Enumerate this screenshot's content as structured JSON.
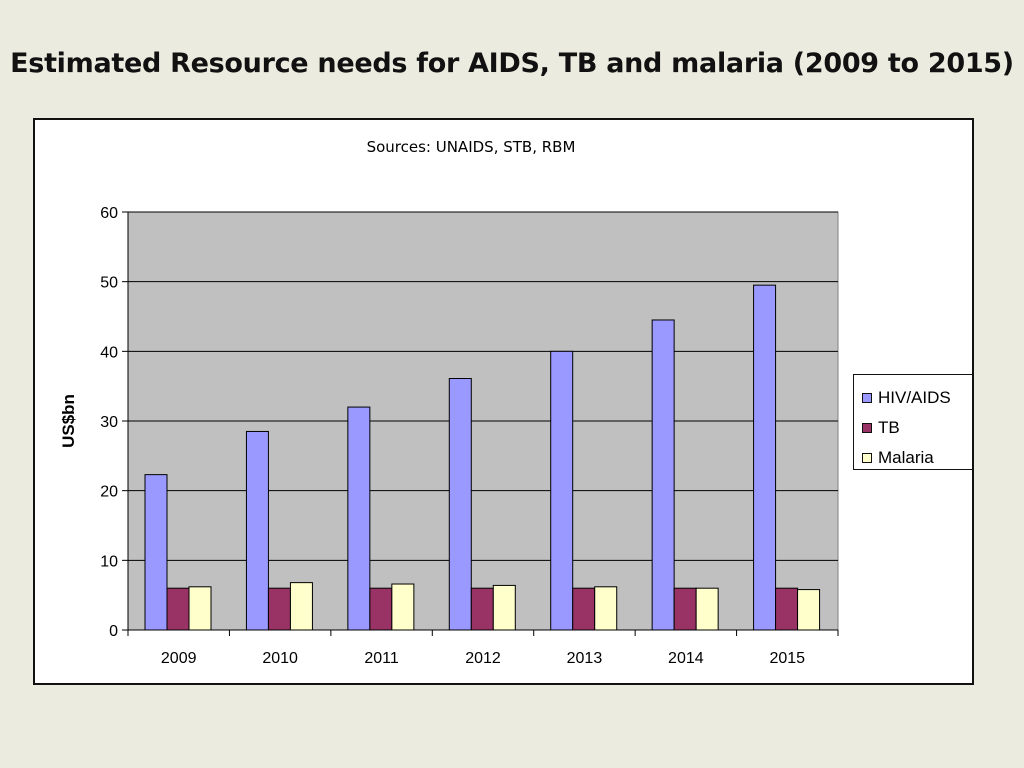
{
  "slide": {
    "title": "Estimated Resource needs for AIDS, TB and malaria (2009 to 2015)"
  },
  "chart_data": {
    "type": "bar",
    "subtitle": "Sources: UNAIDS, STB, RBM",
    "ylabel": "US$bn",
    "xlabel": "",
    "ylim": [
      0,
      60
    ],
    "yticks": [
      0,
      10,
      20,
      30,
      40,
      50,
      60
    ],
    "grid": true,
    "legend_position": "right",
    "plot_background": "#c0c0c0",
    "categories": [
      "2009",
      "2010",
      "2011",
      "2012",
      "2013",
      "2014",
      "2015"
    ],
    "series": [
      {
        "name": "HIV/AIDS",
        "color": "#9999ff",
        "values": [
          22.3,
          28.5,
          32.0,
          36.1,
          40.0,
          44.5,
          49.5
        ]
      },
      {
        "name": "TB",
        "color": "#993366",
        "values": [
          6.0,
          6.0,
          6.0,
          6.0,
          6.0,
          6.0,
          6.0
        ]
      },
      {
        "name": "Malaria",
        "color": "#ffffcc",
        "values": [
          6.2,
          6.8,
          6.6,
          6.4,
          6.2,
          6.0,
          5.8
        ]
      }
    ]
  }
}
